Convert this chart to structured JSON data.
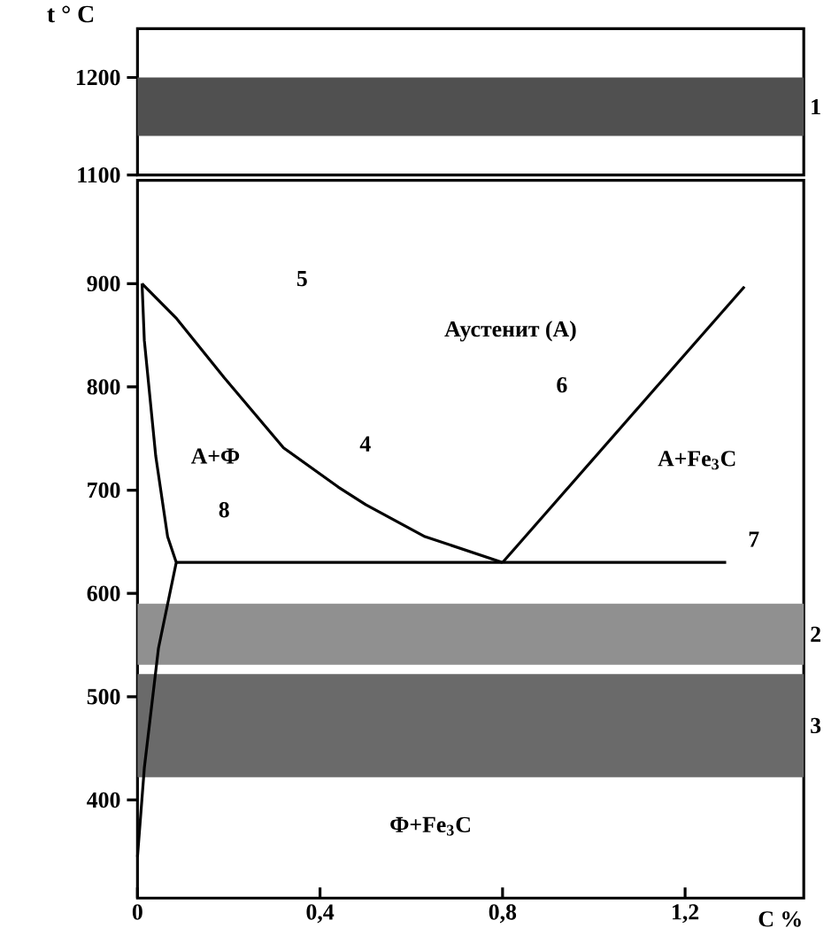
{
  "chart_data": [
    {
      "type": "line",
      "ylabel": "t ° C",
      "xlim": [
        0,
        1.46
      ],
      "ylim": [
        1100,
        1250
      ],
      "yticks": [
        1100,
        1200
      ],
      "tick_labels": "y",
      "bands": [
        {
          "axis": "y",
          "from": 1140,
          "to": 1200,
          "label": "1",
          "color": "#505050"
        }
      ]
    },
    {
      "type": "line",
      "xlabel": "C   %",
      "xlim": [
        0,
        1.46
      ],
      "ylim": [
        305,
        1000
      ],
      "xticks": [
        0,
        {
          "value": 0.4,
          "label": "0,4"
        },
        {
          "value": 0.8,
          "label": "0,8"
        },
        {
          "value": 1.2,
          "label": "1,2"
        }
      ],
      "yticks": [
        400,
        500,
        600,
        700,
        800,
        900
      ],
      "series": [
        {
          "color": "#000000",
          "x": [
            0.01,
            0.086,
            0.19,
            0.32,
            0.44,
            0.5,
            0.63,
            0.8
          ],
          "values": [
            900,
            866,
            809,
            741,
            703,
            686,
            655,
            630
          ]
        },
        {
          "color": "#000000",
          "x": [
            0.01,
            0.015,
            0.04,
            0.066,
            0.085,
            0.046,
            0.015,
            0
          ],
          "values": [
            900,
            845,
            733,
            655,
            630,
            547,
            431,
            345
          ]
        },
        {
          "color": "#000000",
          "x": [
            0.8,
            1.33
          ],
          "values": [
            630,
            897
          ]
        },
        {
          "color": "#000000",
          "x": [
            0.085,
            1.29
          ],
          "values": [
            630,
            630
          ]
        }
      ],
      "bands": [
        {
          "axis": "y",
          "from": 531,
          "to": 590,
          "label": "2",
          "color": "#909090"
        },
        {
          "axis": "y",
          "from": 422,
          "to": 522,
          "label": "3",
          "color": "#6a6a6a"
        }
      ],
      "annotations": [
        "Аустенит (А)",
        "А+Ф",
        "А+Fe$_{3}$C",
        "Ф+Fe$_{3}$C",
        "5",
        "4",
        "6",
        "7",
        "8"
      ]
    }
  ]
}
